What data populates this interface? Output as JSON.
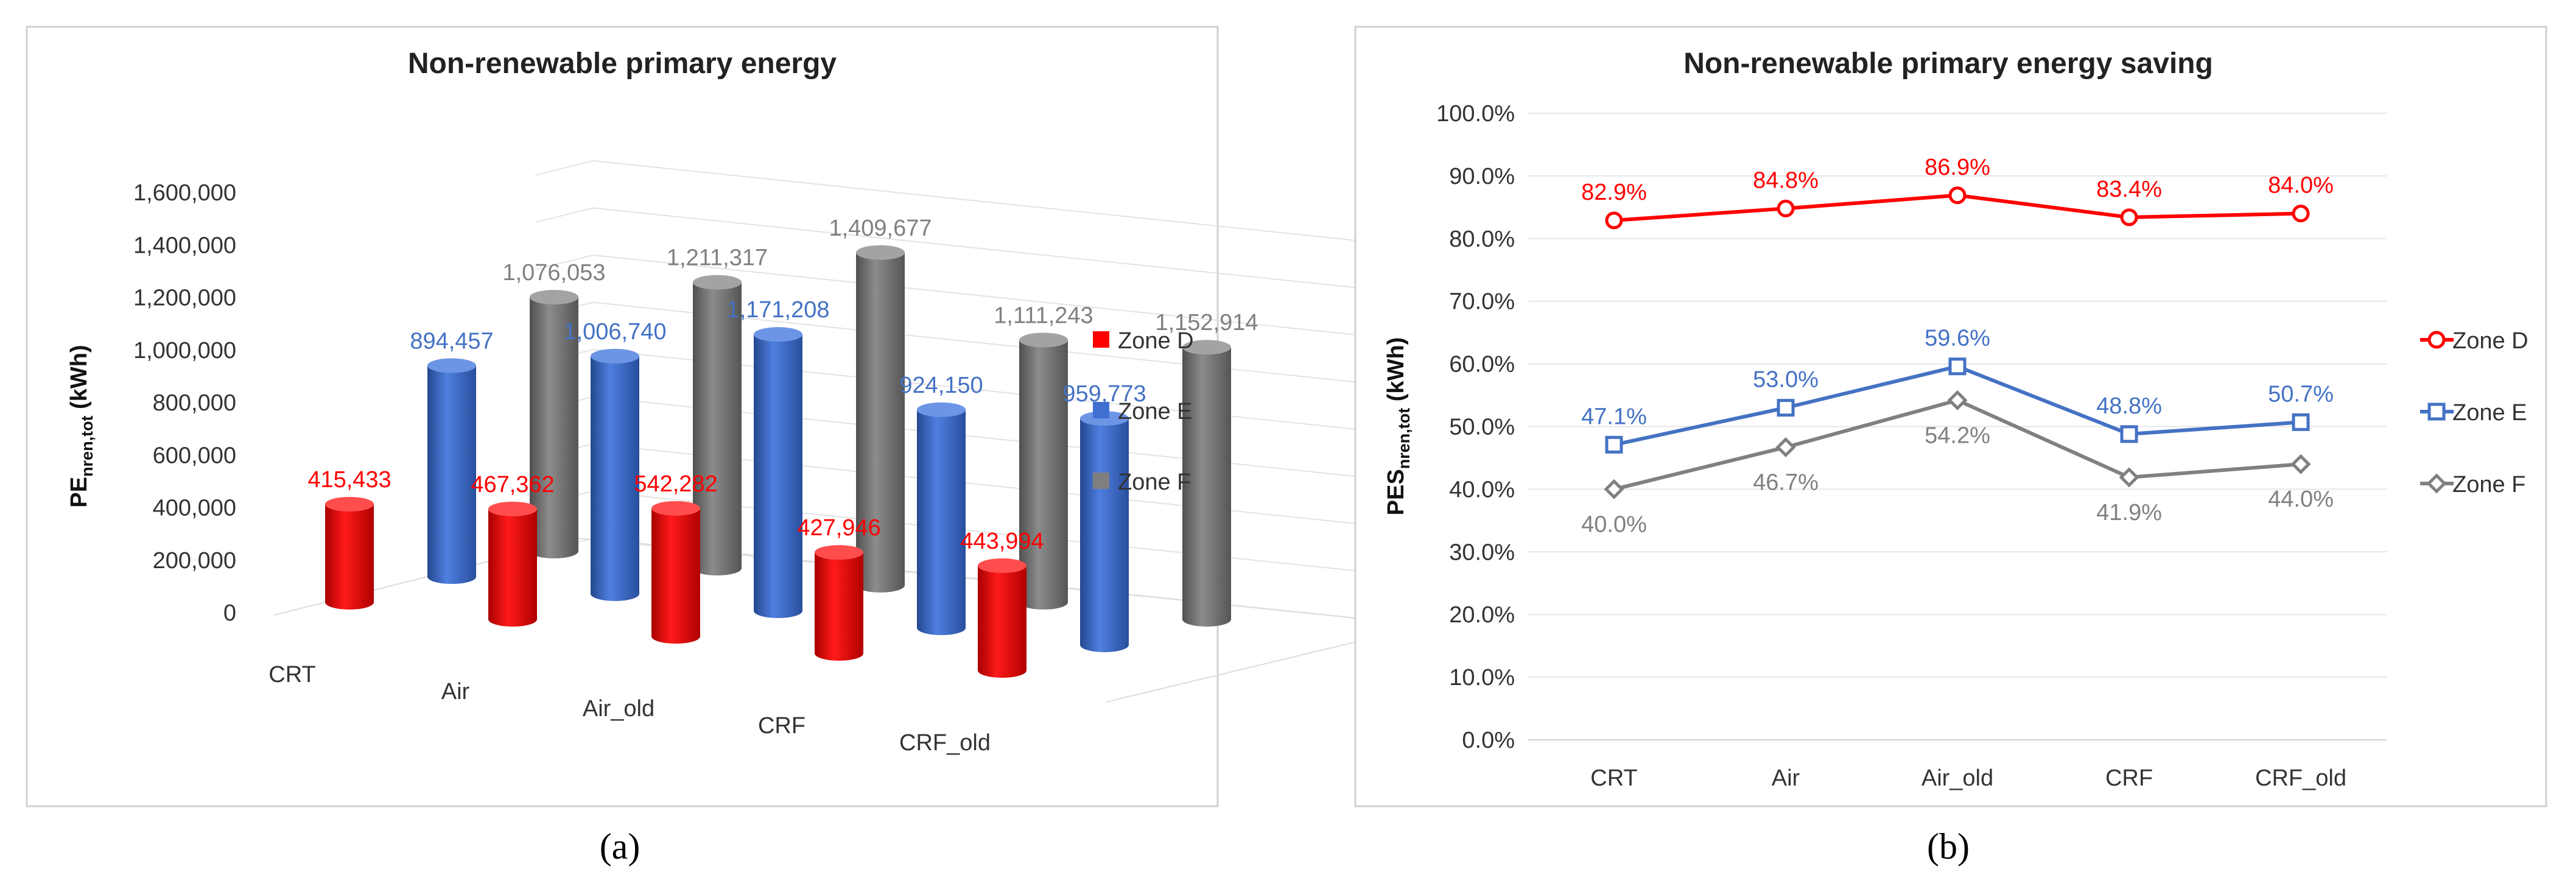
{
  "chart_data": [
    {
      "id": "a",
      "type": "bar",
      "style": "3d-cylinder",
      "title": "Non-renewable primary energy",
      "ylabel": {
        "main": "PE",
        "sub": "nren,tot",
        "suffix": " (kWh)"
      },
      "xlabel": "",
      "ylim": [
        0,
        1600000
      ],
      "yticks": [
        "0",
        "200,000",
        "400,000",
        "600,000",
        "800,000",
        "1,000,000",
        "1,200,000",
        "1,400,000",
        "1,600,000"
      ],
      "ytick_values": [
        0,
        200000,
        400000,
        600000,
        800000,
        1000000,
        1200000,
        1400000,
        1600000
      ],
      "categories": [
        "CRT",
        "Air",
        "Air_old",
        "CRF",
        "CRF_old"
      ],
      "grid": true,
      "legend_position": "right",
      "series": [
        {
          "name": "Zone D",
          "color": "#ff0000",
          "label_color": "#ff0000",
          "values": [
            415433,
            467362,
            542282,
            427946,
            443994
          ],
          "labels": [
            "415,433",
            "467,362",
            "542,282",
            "427,946",
            "443,994"
          ]
        },
        {
          "name": "Zone E",
          "color": "#3f6fd0",
          "label_color": "#4472c4",
          "values": [
            894457,
            1006740,
            1171208,
            924150,
            959773
          ],
          "labels": [
            "894,457",
            "1,006,740",
            "1,171,208",
            "924,150",
            "959,773"
          ]
        },
        {
          "name": "Zone F",
          "color": "#7f7f7f",
          "label_color": "#808080",
          "values": [
            1076053,
            1211317,
            1409677,
            1111243,
            1152914
          ],
          "labels": [
            "1,076,053",
            "1,211,317",
            "1,409,677",
            "1,111,243",
            "1,152,914"
          ]
        }
      ],
      "caption": "(a)"
    },
    {
      "id": "b",
      "type": "line",
      "title": "Non-renewable primary energy saving",
      "ylabel": {
        "main": "PES",
        "sub": "nren,tot",
        "suffix": " (kWh)"
      },
      "xlabel": "",
      "ylim": [
        0,
        100
      ],
      "yticks": [
        "0.0%",
        "10.0%",
        "20.0%",
        "30.0%",
        "40.0%",
        "50.0%",
        "60.0%",
        "70.0%",
        "80.0%",
        "90.0%",
        "100.0%"
      ],
      "ytick_values": [
        0,
        10,
        20,
        30,
        40,
        50,
        60,
        70,
        80,
        90,
        100
      ],
      "categories": [
        "CRT",
        "Air",
        "Air_old",
        "CRF",
        "CRF_old"
      ],
      "grid": true,
      "legend_position": "right",
      "series": [
        {
          "name": "Zone D",
          "color": "#ff0000",
          "marker": "circle",
          "label_side": "above",
          "values": [
            82.9,
            84.8,
            86.9,
            83.4,
            84.0
          ],
          "labels": [
            "82.9%",
            "84.8%",
            "86.9%",
            "83.4%",
            "84.0%"
          ]
        },
        {
          "name": "Zone E",
          "color": "#4472c4",
          "marker": "square",
          "label_side": "above",
          "values": [
            47.1,
            53.0,
            59.6,
            48.8,
            50.7
          ],
          "labels": [
            "47.1%",
            "53.0%",
            "59.6%",
            "48.8%",
            "50.7%"
          ]
        },
        {
          "name": "Zone F",
          "color": "#808080",
          "marker": "diamond",
          "label_side": "below",
          "values": [
            40.0,
            46.7,
            54.2,
            41.9,
            44.0
          ],
          "labels": [
            "40.0%",
            "46.7%",
            "54.2%",
            "41.9%",
            "44.0%"
          ]
        }
      ],
      "caption": "(b)"
    }
  ]
}
